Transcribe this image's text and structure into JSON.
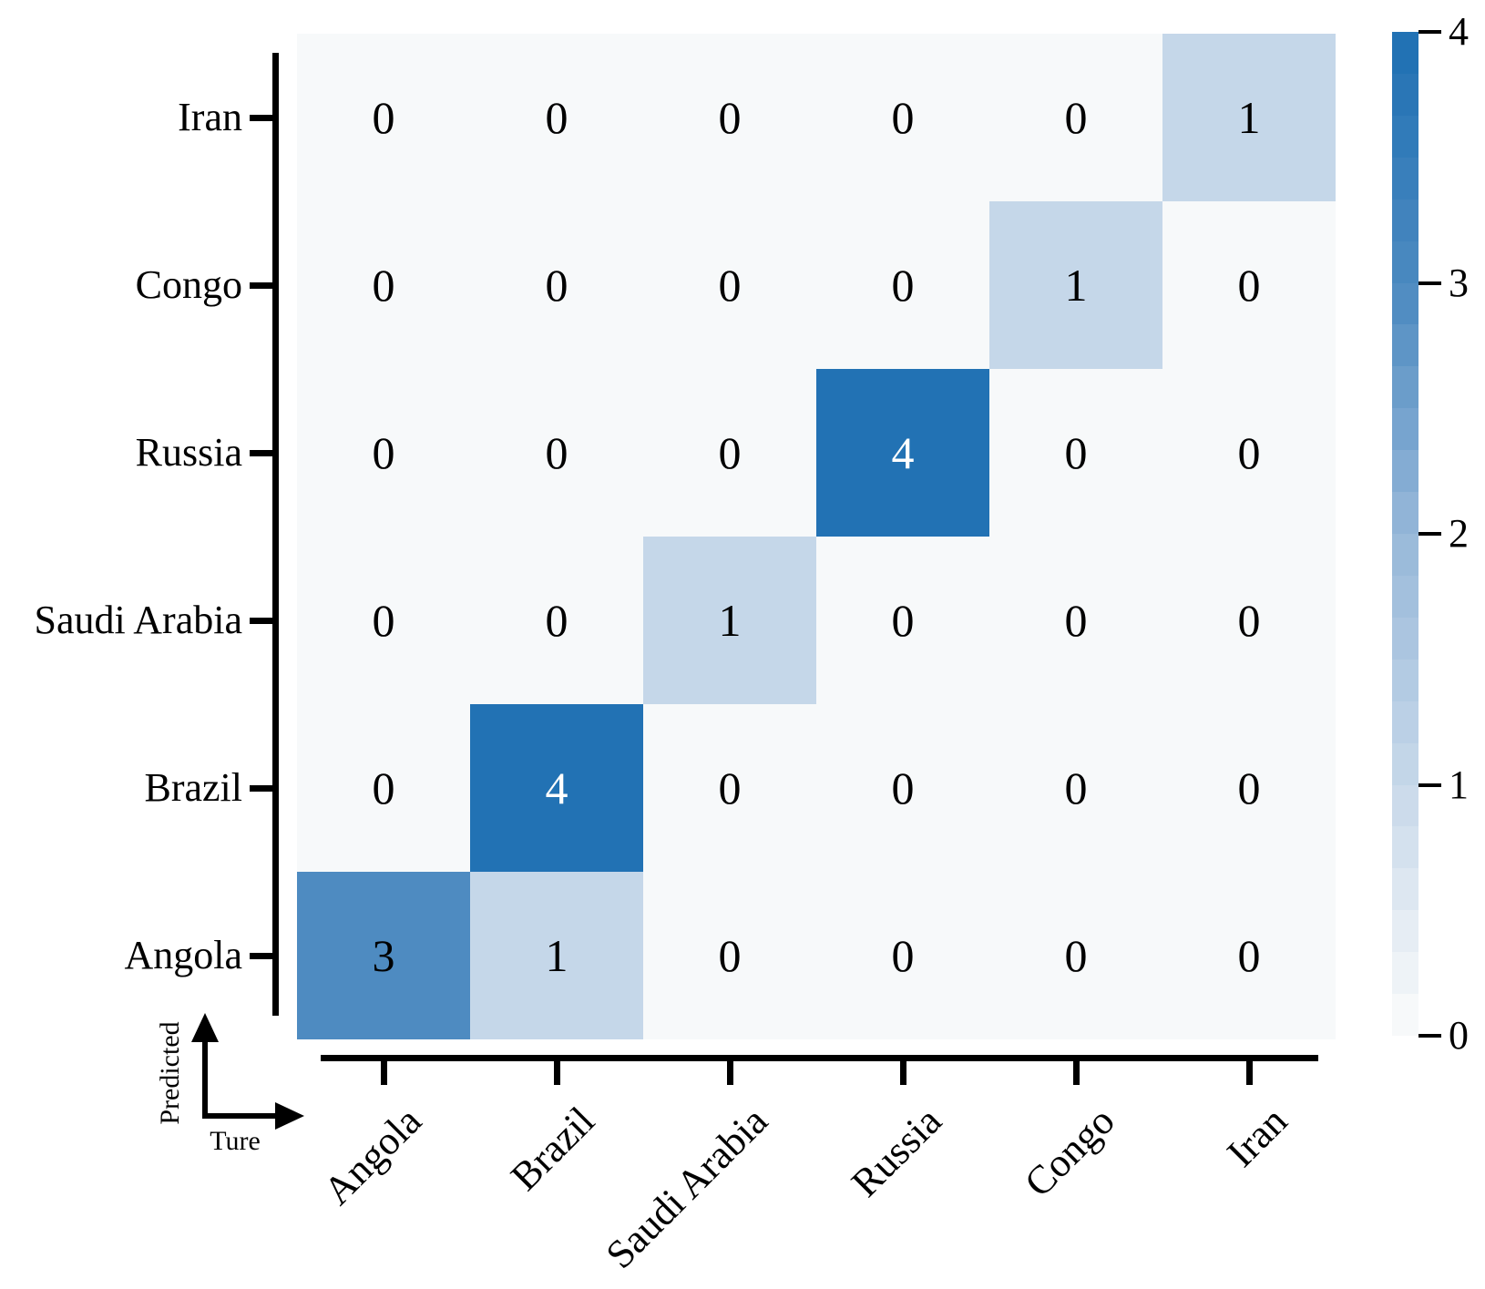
{
  "chart_data": {
    "type": "heatmap",
    "title": "",
    "x_axis_label": "Ture",
    "y_axis_label": "Predicted",
    "x_categories": [
      "Angola",
      "Brazil",
      "Saudi Arabia",
      "Russia",
      "Congo",
      "Iran"
    ],
    "y_categories_top_to_bottom": [
      "Iran",
      "Congo",
      "Russia",
      "Saudi Arabia",
      "Brazil",
      "Angola"
    ],
    "matrix_rows_top_to_bottom": [
      [
        0,
        0,
        0,
        0,
        0,
        1
      ],
      [
        0,
        0,
        0,
        0,
        1,
        0
      ],
      [
        0,
        0,
        0,
        4,
        0,
        0
      ],
      [
        0,
        0,
        1,
        0,
        0,
        0
      ],
      [
        0,
        4,
        0,
        0,
        0,
        0
      ],
      [
        3,
        1,
        0,
        0,
        0,
        0
      ]
    ],
    "colorbar": {
      "min": 0,
      "max": 4,
      "tick_labels_top_to_bottom": [
        "4",
        "3",
        "2",
        "1",
        "0"
      ],
      "bands": 24,
      "position": "right"
    },
    "colors": {
      "value_0": "#f7f9fa",
      "value_1": "#c5d7e9",
      "value_2": "#97b8d9",
      "value_3": "#4e8bc1",
      "value_4": "#2272b4",
      "annotation_dark": "#000000",
      "annotation_light": "#ffffff",
      "axis": "#000000"
    },
    "white_text_min_value": 4,
    "grid": false,
    "legend": "colorbar"
  }
}
